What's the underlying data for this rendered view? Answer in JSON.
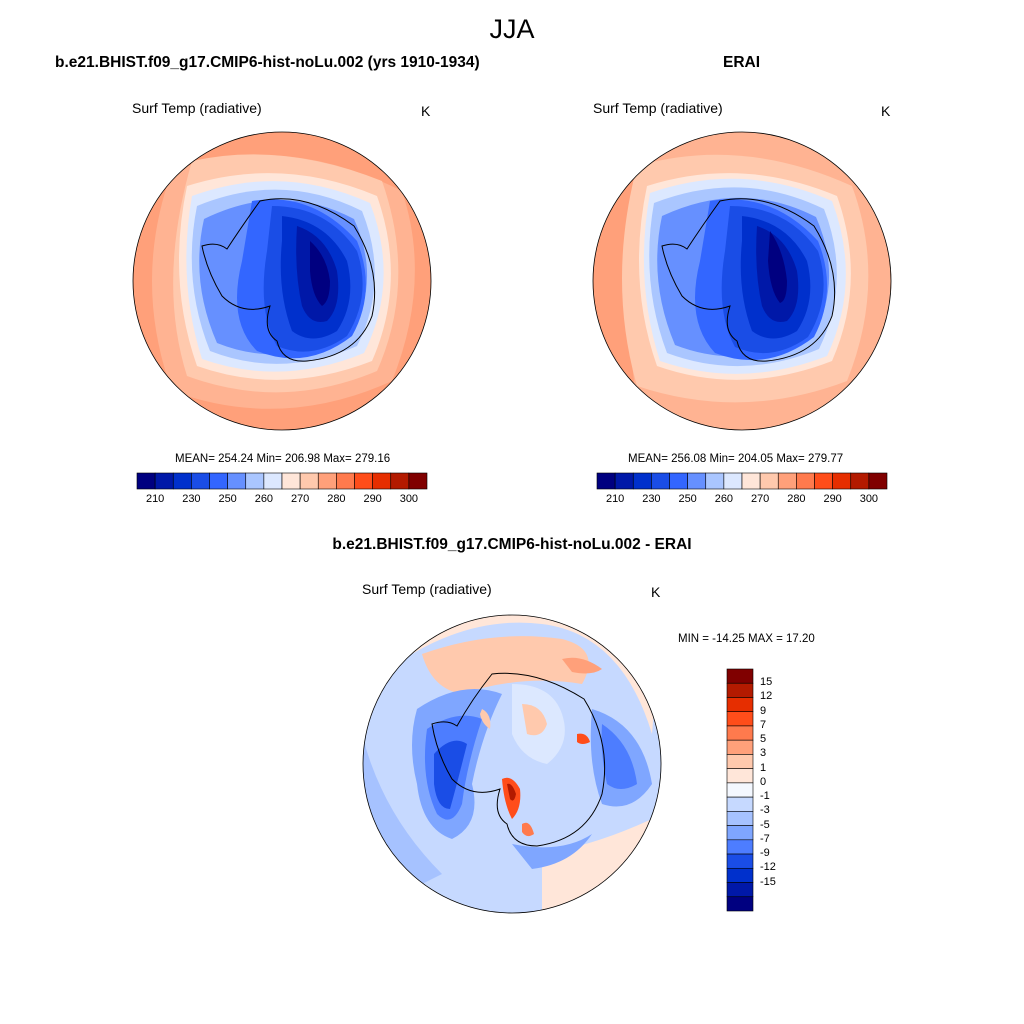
{
  "title": "JJA",
  "panels": {
    "model": {
      "title": "b.e21.BHIST.f09_g17.CMIP6-hist-noLu.002 (yrs 1910-1934)",
      "variable": "Surf Temp (radiative)",
      "units": "K",
      "stats": "MEAN= 254.24  Min= 206.98  Max= 279.16"
    },
    "obs": {
      "title": "ERAI",
      "variable": "Surf Temp (radiative)",
      "units": "K",
      "stats": "MEAN= 256.08  Min= 204.05  Max= 279.77"
    },
    "diff": {
      "title": "b.e21.BHIST.f09_g17.CMIP6-hist-noLu.002 - ERAI",
      "variable": "Surf Temp (radiative)",
      "units": "K",
      "stats": "MIN = -14.25 MAX =  17.20"
    }
  },
  "abs_colorbar": {
    "colors": [
      "#000080",
      "#0018a8",
      "#0030cc",
      "#1a4de6",
      "#3366ff",
      "#6690ff",
      "#aac6ff",
      "#dce8ff",
      "#ffe6d9",
      "#ffc9ad",
      "#ffa07a",
      "#ff7a4d",
      "#ff4d1a",
      "#e62e00",
      "#b31a00",
      "#800000"
    ],
    "tick_labels": [
      "210",
      "230",
      "250",
      "260",
      "270",
      "280",
      "290",
      "300"
    ]
  },
  "diff_colorbar": {
    "colors_top_to_bottom": [
      "#800000",
      "#b31a00",
      "#e62e00",
      "#ff4d1a",
      "#ff7a4d",
      "#ffa07a",
      "#ffc9ad",
      "#ffe6d9",
      "#f4f8ff",
      "#c6d9ff",
      "#a6c2ff",
      "#7fa6ff",
      "#4d7dff",
      "#1a4de6",
      "#0030cc",
      "#0018a8",
      "#000080"
    ],
    "tick_labels": [
      "15",
      "12",
      "9",
      "7",
      "5",
      "3",
      "1",
      "0",
      "-1",
      "-3",
      "-5",
      "-7",
      "-9",
      "-12",
      "-15"
    ]
  }
}
